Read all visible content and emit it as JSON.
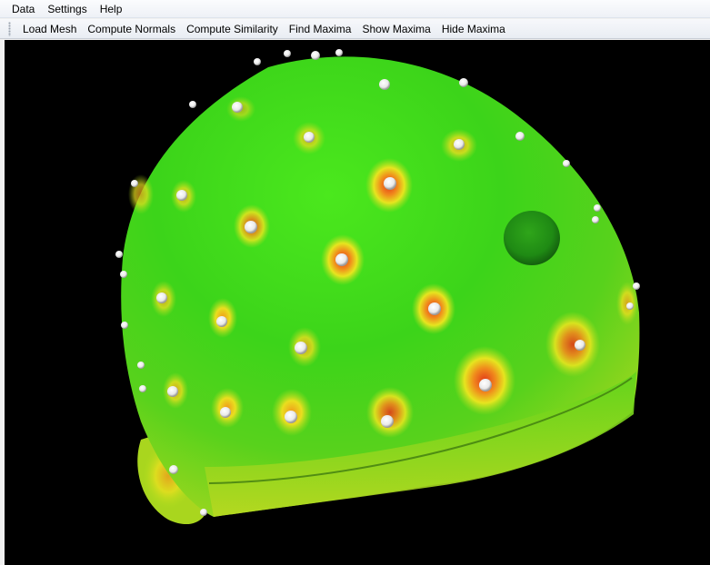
{
  "menubar": {
    "items": [
      {
        "label": "Data"
      },
      {
        "label": "Settings"
      },
      {
        "label": "Help"
      }
    ]
  },
  "toolbar": {
    "buttons": [
      {
        "label": "Load Mesh"
      },
      {
        "label": "Compute Normals"
      },
      {
        "label": "Compute Similarity"
      },
      {
        "label": "Find Maxima"
      },
      {
        "label": "Show Maxima"
      },
      {
        "label": "Hide Maxima"
      }
    ]
  },
  "viewport": {
    "background": "#000000",
    "mesh_color": "#3fd21a",
    "hotspot_color": "#e8411c",
    "marker_color": "#ffffff"
  }
}
